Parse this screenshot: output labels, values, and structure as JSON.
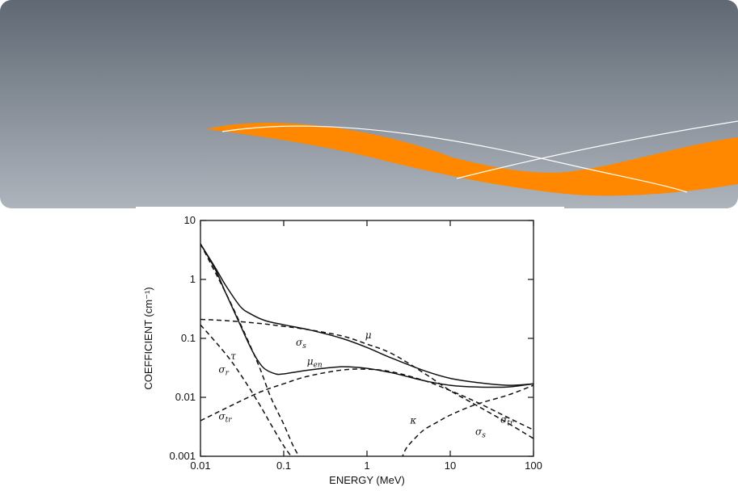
{
  "slide": {
    "accent_color": "#ff8800",
    "banner_gradient_top": "#5f6873",
    "banner_gradient_bottom": "#aeb4bc"
  },
  "chart_data": {
    "type": "line",
    "x_scale": "log",
    "y_scale": "log",
    "xlim": [
      0.01,
      100
    ],
    "ylim": [
      0.001,
      10
    ],
    "x_ticks": [
      "0.01",
      "0.1",
      "1",
      "10",
      "100"
    ],
    "y_ticks": [
      "0.001",
      "0.01",
      "0.1",
      "1",
      "10"
    ],
    "xlabel": "ENERGY (MeV)",
    "ylabel": "COEFFICIENT (cm⁻¹)",
    "grid": false,
    "series": [
      {
        "name": "μ",
        "style": "solid",
        "x": [
          0.01,
          0.015,
          0.02,
          0.03,
          0.04,
          0.06,
          0.1,
          0.2,
          0.5,
          1,
          2,
          5,
          10,
          20,
          50,
          100
        ],
        "y": [
          4.0,
          1.6,
          0.8,
          0.35,
          0.26,
          0.2,
          0.17,
          0.14,
          0.1,
          0.07,
          0.046,
          0.028,
          0.021,
          0.018,
          0.016,
          0.017
        ]
      },
      {
        "name": "μen",
        "style": "solid",
        "x": [
          0.01,
          0.015,
          0.02,
          0.03,
          0.04,
          0.05,
          0.06,
          0.08,
          0.1,
          0.2,
          0.5,
          1,
          2,
          5,
          10,
          20,
          50,
          100
        ],
        "y": [
          4.0,
          1.5,
          0.6,
          0.17,
          0.07,
          0.04,
          0.03,
          0.025,
          0.025,
          0.029,
          0.033,
          0.031,
          0.026,
          0.019,
          0.016,
          0.015,
          0.015,
          0.017
        ]
      },
      {
        "name": "σs",
        "style": "dashed",
        "x": [
          0.01,
          0.02,
          0.05,
          0.1,
          0.2,
          0.5,
          1,
          2,
          5,
          10,
          20,
          50,
          100
        ],
        "y": [
          0.21,
          0.2,
          0.18,
          0.16,
          0.14,
          0.11,
          0.08,
          0.055,
          0.025,
          0.013,
          0.0075,
          0.0036,
          0.002
        ]
      },
      {
        "name": "τ",
        "style": "dashed",
        "x": [
          0.01,
          0.02,
          0.03,
          0.05,
          0.07,
          0.1,
          0.13,
          0.16
        ],
        "y": [
          4.0,
          0.6,
          0.18,
          0.035,
          0.01,
          0.0035,
          0.0015,
          0.0009
        ]
      },
      {
        "name": "σr",
        "style": "dashed",
        "x": [
          0.01,
          0.02,
          0.03,
          0.05,
          0.07,
          0.1,
          0.13
        ],
        "y": [
          0.17,
          0.055,
          0.025,
          0.008,
          0.0035,
          0.0015,
          0.0009
        ]
      },
      {
        "name": "σtr",
        "style": "dashed",
        "x": [
          0.01,
          0.02,
          0.05,
          0.1,
          0.2,
          0.5,
          1,
          2,
          5,
          10,
          20,
          50,
          100
        ],
        "y": [
          0.004,
          0.0065,
          0.012,
          0.017,
          0.023,
          0.029,
          0.03,
          0.027,
          0.019,
          0.013,
          0.0085,
          0.0045,
          0.0028
        ]
      },
      {
        "name": "κ",
        "style": "dashed",
        "x": [
          2.6,
          3,
          4,
          5,
          7,
          10,
          20,
          50,
          100
        ],
        "y": [
          0.0009,
          0.0014,
          0.0022,
          0.0029,
          0.0038,
          0.005,
          0.0075,
          0.011,
          0.016
        ]
      }
    ],
    "annotations": [
      {
        "text": "μ",
        "sub": "",
        "x": 0.95,
        "y": 0.1
      },
      {
        "text": "μ",
        "sub": "en",
        "x": 0.19,
        "y": 0.036
      },
      {
        "text": "σ",
        "sub": "s",
        "x": 0.14,
        "y": 0.075
      },
      {
        "text": "τ",
        "sub": "",
        "x": 0.023,
        "y": 0.044
      },
      {
        "text": "σ",
        "sub": "r",
        "x": 0.0165,
        "y": 0.026
      },
      {
        "text": "σ",
        "sub": "tr",
        "x": 0.0165,
        "y": 0.0042
      },
      {
        "text": "κ",
        "sub": "",
        "x": 3.3,
        "y": 0.0036
      },
      {
        "text": "σ",
        "sub": "tr",
        "x": 40,
        "y": 0.0037
      },
      {
        "text": "σ",
        "sub": "s",
        "x": 20,
        "y": 0.0023
      }
    ]
  }
}
